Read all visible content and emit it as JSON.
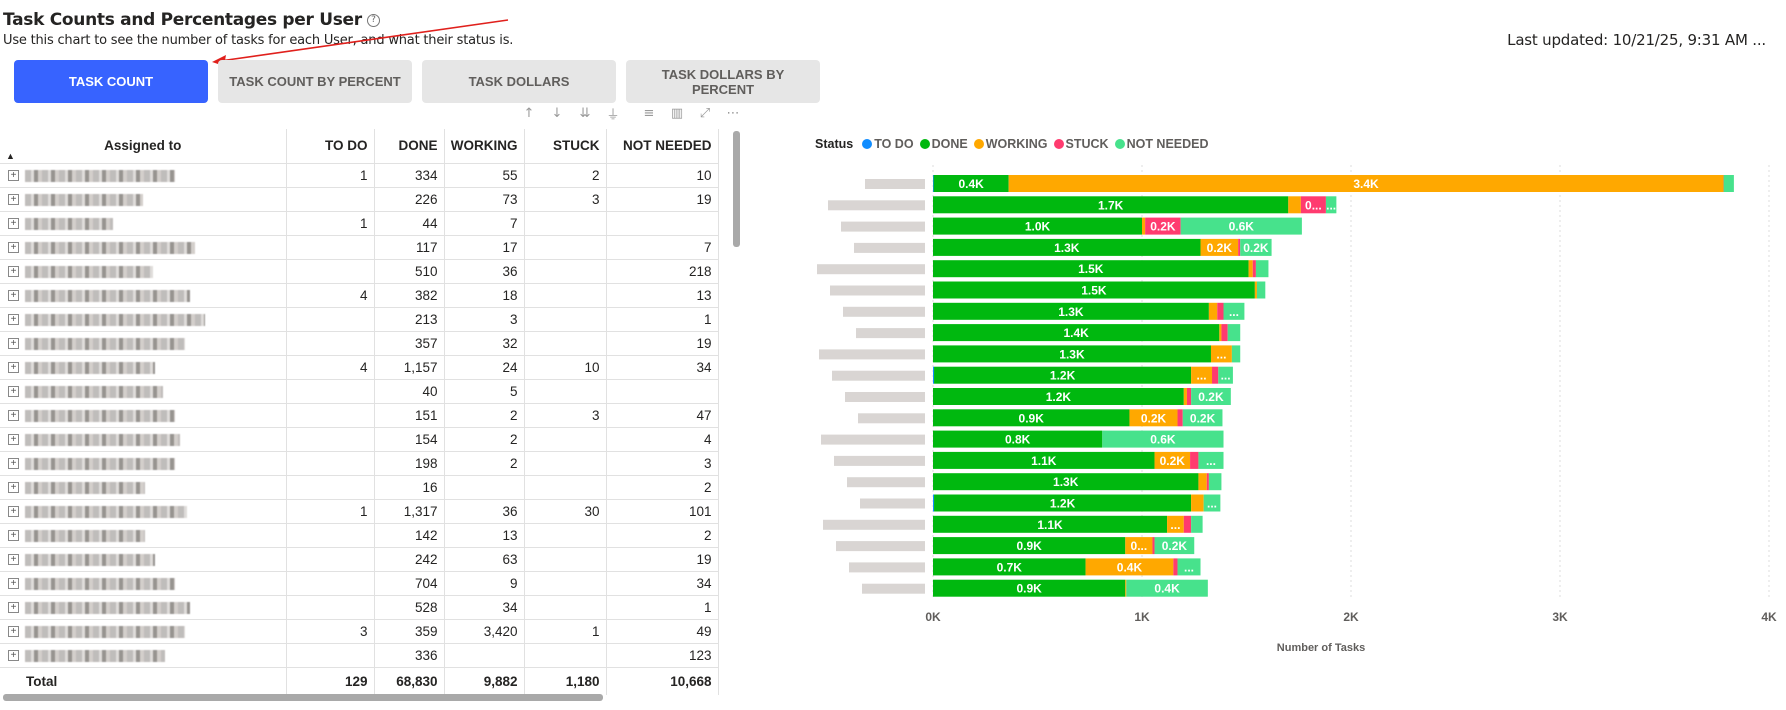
{
  "header": {
    "title": "Task Counts and Percentages per User",
    "help_icon": "question-circle-icon",
    "help_glyph": "?",
    "subtitle": "Use this chart to see the number of tasks for each User, and what their status is.",
    "last_updated": "Last updated: 10/21/25, 9:31 AM ..."
  },
  "tabs": [
    {
      "label": "TASK COUNT",
      "active": true
    },
    {
      "label": "TASK COUNT BY PERCENT",
      "active": false
    },
    {
      "label": "TASK DOLLARS",
      "active": false
    },
    {
      "label": "TASK DOLLARS BY PERCENT",
      "active": false
    }
  ],
  "visual_toolbar": [
    {
      "name": "drill-up-icon",
      "glyph": "↑"
    },
    {
      "name": "drill-down-icon",
      "glyph": "↓"
    },
    {
      "name": "go-to-next-level-icon",
      "glyph": "⇊"
    },
    {
      "name": "expand-hierarchy-icon",
      "glyph": "⏚"
    },
    {
      "name": "filter-icon",
      "glyph": "≡"
    },
    {
      "name": "format-visual-icon",
      "glyph": "▥"
    },
    {
      "name": "focus-mode-icon",
      "glyph": "⤢"
    },
    {
      "name": "more-options-icon",
      "glyph": "⋯"
    }
  ],
  "table": {
    "columns": [
      "Assigned to",
      "TO DO",
      "DONE",
      "WORKING",
      "STUCK",
      "NOT NEEDED"
    ],
    "sort_indicator": "▲",
    "expand_glyph": "+",
    "rows": [
      {
        "name": "[blurred]",
        "todo": "1",
        "done": "334",
        "working": "55",
        "stuck": "2",
        "not_needed": "10"
      },
      {
        "name": "[blurred]",
        "todo": "",
        "done": "226",
        "working": "73",
        "stuck": "3",
        "not_needed": "19"
      },
      {
        "name": "[blurred]",
        "todo": "1",
        "done": "44",
        "working": "7",
        "stuck": "",
        "not_needed": ""
      },
      {
        "name": "[blurred]",
        "todo": "",
        "done": "117",
        "working": "17",
        "stuck": "",
        "not_needed": "7"
      },
      {
        "name": "[blurred]",
        "todo": "",
        "done": "510",
        "working": "36",
        "stuck": "",
        "not_needed": "218"
      },
      {
        "name": "[blurred]",
        "todo": "4",
        "done": "382",
        "working": "18",
        "stuck": "",
        "not_needed": "13"
      },
      {
        "name": "[blurred]",
        "todo": "",
        "done": "213",
        "working": "3",
        "stuck": "",
        "not_needed": "1"
      },
      {
        "name": "[blurred]",
        "todo": "",
        "done": "357",
        "working": "32",
        "stuck": "",
        "not_needed": "19"
      },
      {
        "name": "[blurred]",
        "todo": "4",
        "done": "1,157",
        "working": "24",
        "stuck": "10",
        "not_needed": "34"
      },
      {
        "name": "[blurred]",
        "todo": "",
        "done": "40",
        "working": "5",
        "stuck": "",
        "not_needed": ""
      },
      {
        "name": "[blurred]",
        "todo": "",
        "done": "151",
        "working": "2",
        "stuck": "3",
        "not_needed": "47"
      },
      {
        "name": "[blurred]",
        "todo": "",
        "done": "154",
        "working": "2",
        "stuck": "",
        "not_needed": "4"
      },
      {
        "name": "[blurred]",
        "todo": "",
        "done": "198",
        "working": "2",
        "stuck": "",
        "not_needed": "3"
      },
      {
        "name": "[blurred]",
        "todo": "",
        "done": "16",
        "working": "",
        "stuck": "",
        "not_needed": "2"
      },
      {
        "name": "[blurred]",
        "todo": "1",
        "done": "1,317",
        "working": "36",
        "stuck": "30",
        "not_needed": "101"
      },
      {
        "name": "[blurred]",
        "todo": "",
        "done": "142",
        "working": "13",
        "stuck": "",
        "not_needed": "2"
      },
      {
        "name": "[blurred]",
        "todo": "",
        "done": "242",
        "working": "63",
        "stuck": "",
        "not_needed": "19"
      },
      {
        "name": "[blurred]",
        "todo": "",
        "done": "704",
        "working": "9",
        "stuck": "",
        "not_needed": "34"
      },
      {
        "name": "[blurred]",
        "todo": "",
        "done": "528",
        "working": "34",
        "stuck": "",
        "not_needed": "1"
      },
      {
        "name": "[blurred]",
        "todo": "3",
        "done": "359",
        "working": "3,420",
        "stuck": "1",
        "not_needed": "49"
      },
      {
        "name": "[blurred]",
        "todo": "",
        "done": "336",
        "working": "",
        "stuck": "",
        "not_needed": "123"
      }
    ],
    "total": {
      "label": "Total",
      "todo": "129",
      "done": "68,830",
      "working": "9,882",
      "stuck": "1,180",
      "not_needed": "10,668"
    }
  },
  "chart_data": {
    "type": "bar",
    "orientation": "horizontal",
    "stacked": true,
    "title": "",
    "legend_title": "Status",
    "legend_position": "top-left",
    "xlabel": "Number of Tasks",
    "ylabel": "",
    "xlim": [
      0,
      4000
    ],
    "xticks": [
      0,
      1000,
      2000,
      3000,
      4000
    ],
    "xtick_labels": [
      "0K",
      "1K",
      "2K",
      "3K",
      "4K"
    ],
    "grid": true,
    "categories": [
      "[blurred user 1]",
      "[blurred user 2]",
      "[blurred user 3]",
      "[blurred user 4]",
      "[blurred user 5]",
      "[blurred user 6]",
      "[blurred user 7]",
      "[blurred user 8]",
      "[blurred user 9]",
      "[blurred user 10]",
      "[blurred user 11]",
      "[blurred user 12]",
      "[blurred user 13]",
      "[blurred user 14]",
      "[blurred user 15]",
      "[blurred user 16]",
      "[blurred user 17]",
      "[blurred user 18]",
      "[blurred user 19]",
      "[blurred user 20]"
    ],
    "series": [
      {
        "name": "TO DO",
        "color": "#118dff",
        "values": [
          3,
          0,
          0,
          0,
          0,
          0,
          0,
          0,
          0,
          5,
          0,
          0,
          0,
          0,
          0,
          5,
          0,
          0,
          0,
          0
        ],
        "labels": [
          "",
          "",
          "",
          "",
          "",
          "",
          "",
          "",
          "",
          "",
          "",
          "",
          "",
          "",
          "",
          "",
          "",
          "",
          "",
          ""
        ]
      },
      {
        "name": "DONE",
        "color": "#00b80f",
        "values": [
          359,
          1700,
          1000,
          1280,
          1510,
          1540,
          1320,
          1370,
          1330,
          1230,
          1200,
          940,
          810,
          1060,
          1270,
          1230,
          1120,
          920,
          730,
          920
        ],
        "labels": [
          "0.4K",
          "1.7K",
          "1.0K",
          "1.3K",
          "1.5K",
          "1.5K",
          "1.3K",
          "1.4K",
          "1.3K",
          "1.2K",
          "1.2K",
          "0.9K",
          "0.8K",
          "1.1K",
          "1.3K",
          "1.2K",
          "1.1K",
          "0.9K",
          "0.7K",
          "0.9K"
        ]
      },
      {
        "name": "WORKING",
        "color": "#ffa800",
        "values": [
          3420,
          60,
          15,
          180,
          20,
          10,
          40,
          10,
          100,
          100,
          15,
          230,
          0,
          170,
          40,
          60,
          80,
          130,
          420,
          5
        ],
        "labels": [
          "3.4K",
          "",
          "",
          "0.2K",
          "",
          "",
          "",
          "",
          "...",
          "...",
          "",
          "0.2K",
          "",
          "0.2K",
          "",
          "",
          "...",
          "0...",
          "0.4K",
          ""
        ]
      },
      {
        "name": "STUCK",
        "color": "#ff3b6f",
        "values": [
          1,
          120,
          170,
          10,
          15,
          0,
          30,
          30,
          0,
          30,
          20,
          25,
          0,
          40,
          10,
          0,
          35,
          10,
          20,
          0
        ],
        "labels": [
          "",
          "0...",
          "0.2K",
          "",
          "",
          "",
          "",
          "",
          "",
          "",
          "",
          "",
          "",
          "",
          "",
          "",
          "",
          "",
          "",
          ""
        ]
      },
      {
        "name": "NOT NEEDED",
        "color": "#47e28c",
        "values": [
          49,
          50,
          580,
          150,
          60,
          40,
          100,
          60,
          40,
          70,
          190,
          190,
          580,
          120,
          60,
          80,
          55,
          190,
          110,
          390
        ],
        "labels": [
          "",
          "...",
          "0.6K",
          "0.2K",
          "",
          "",
          "...",
          "",
          "",
          "...",
          "0.2K",
          "0.2K",
          "0.6K",
          "...",
          "",
          "...",
          "",
          "0.2K",
          "...",
          "0.4K"
        ]
      }
    ]
  }
}
